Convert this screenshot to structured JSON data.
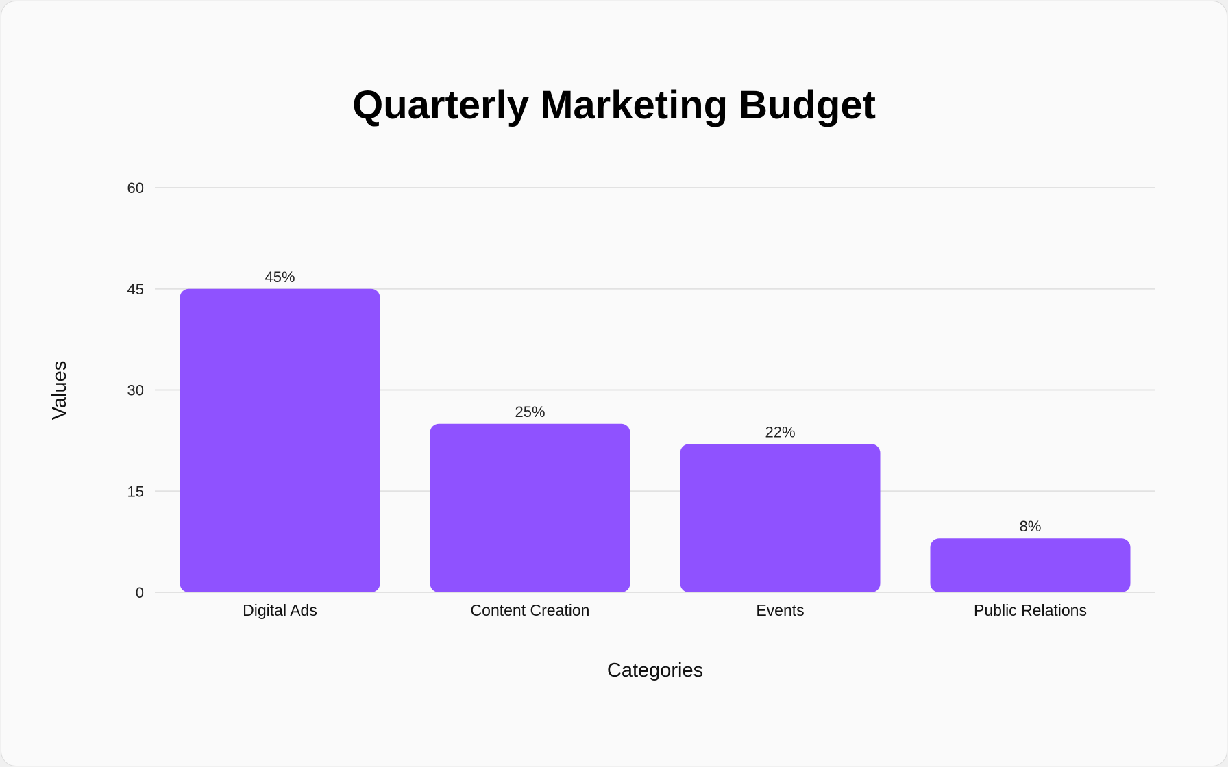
{
  "chart_data": {
    "type": "bar",
    "title": "Quarterly Marketing Budget",
    "xlabel": "Categories",
    "ylabel": "Values",
    "categories": [
      "Digital Ads",
      "Content Creation",
      "Events",
      "Public Relations"
    ],
    "values": [
      45,
      25,
      22,
      8
    ],
    "data_labels": [
      "45%",
      "25%",
      "22%",
      "8%"
    ],
    "ylim": [
      0,
      60
    ],
    "yticks": [
      0,
      15,
      30,
      45,
      60
    ],
    "ytick_labels": [
      "0",
      "15",
      "30",
      "45",
      "60"
    ],
    "grid": true,
    "bar_color": "#8f52ff"
  }
}
